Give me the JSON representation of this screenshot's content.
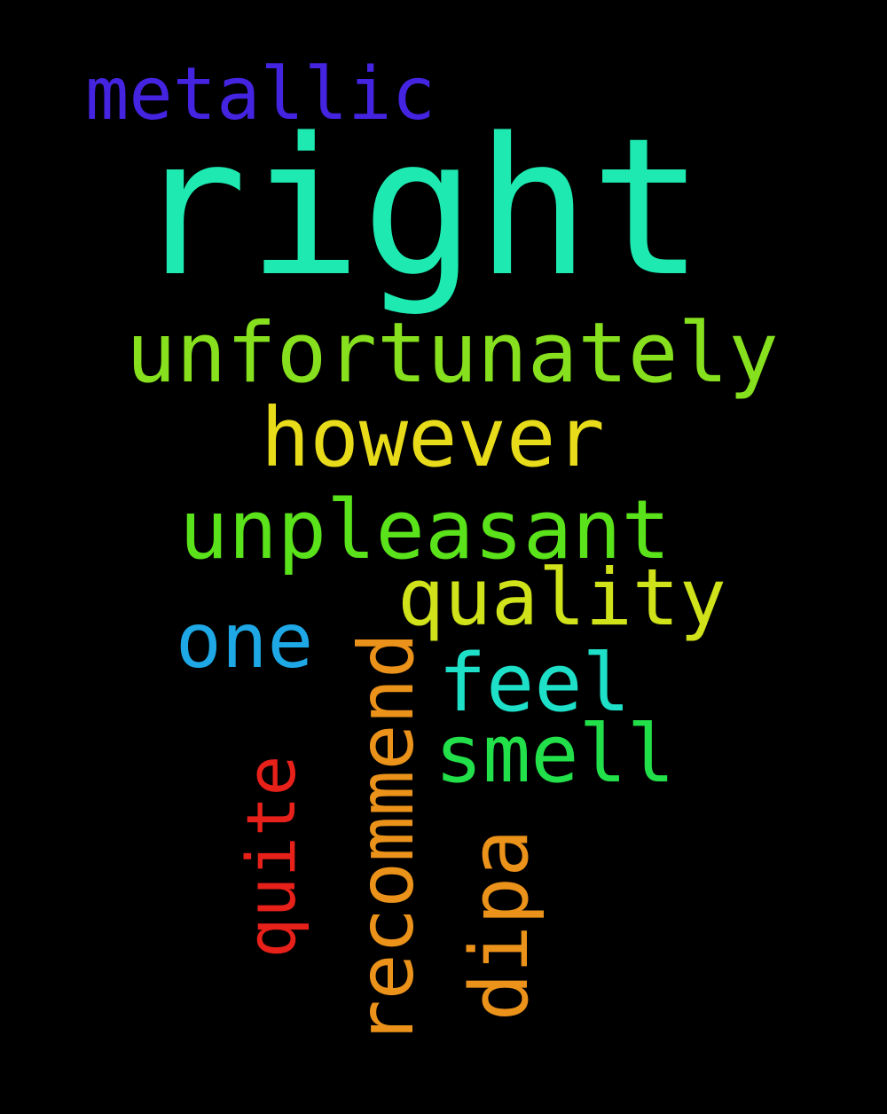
{
  "words": {
    "right": {
      "text": "right",
      "color": "#1de9b0"
    },
    "metallic": {
      "text": "metallic",
      "color": "#4424e0"
    },
    "unfortunately": {
      "text": "unfortunately",
      "color": "#86e01e"
    },
    "however": {
      "text": "however",
      "color": "#e8dc1a"
    },
    "unpleasant": {
      "text": "unpleasant",
      "color": "#5ae21a"
    },
    "quality": {
      "text": "quality",
      "color": "#cfe21a"
    },
    "one": {
      "text": "one",
      "color": "#1ea8e6"
    },
    "feel": {
      "text": "feel",
      "color": "#1ee0c8"
    },
    "smell": {
      "text": "smell",
      "color": "#22e04a"
    },
    "recommend": {
      "text": "recommend",
      "color": "#ea921a"
    },
    "quite": {
      "text": "quite",
      "color": "#e8201a"
    },
    "dipa": {
      "text": "dipa",
      "color": "#ea921a"
    }
  }
}
